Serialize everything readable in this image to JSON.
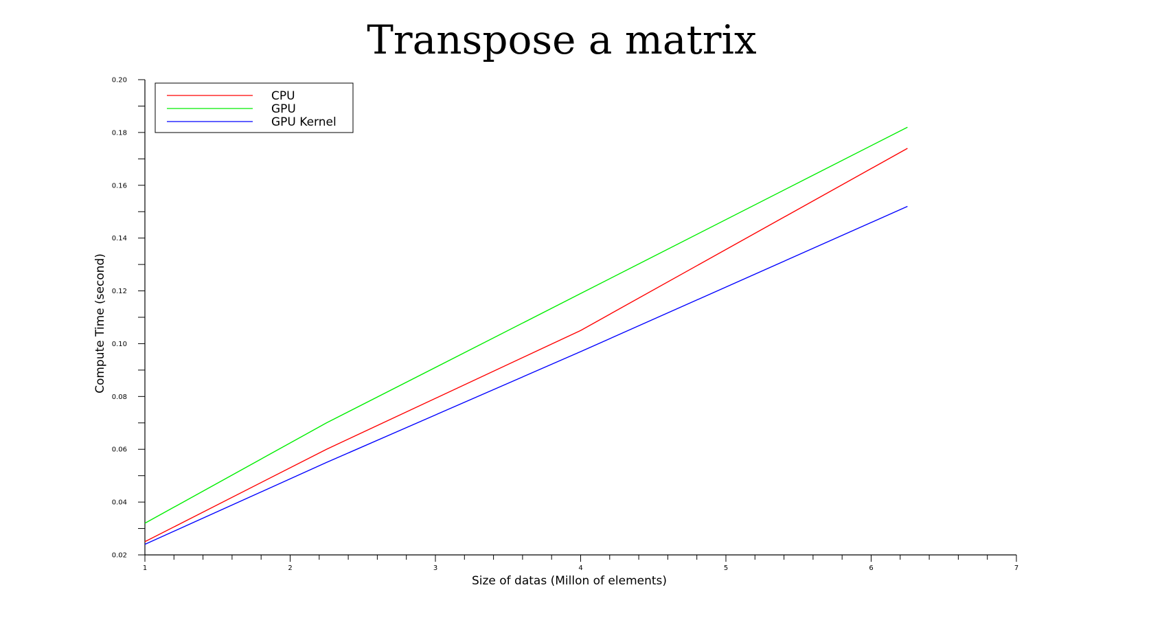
{
  "chart_data": {
    "type": "line",
    "title": "Transpose a matrix",
    "xlabel": "Size of datas (Millon of elements)",
    "ylabel": "Compute Time (second)",
    "xlim": [
      1,
      7
    ],
    "ylim": [
      0.02,
      0.2
    ],
    "x_major_ticks": [
      1,
      2,
      3,
      4,
      5,
      6,
      7
    ],
    "x_tick_labels": [
      "1",
      "2",
      "3",
      "4",
      "5",
      "6",
      "7"
    ],
    "y_major_ticks": [
      0.02,
      0.04,
      0.06,
      0.08,
      0.1,
      0.12,
      0.14,
      0.16,
      0.18,
      0.2
    ],
    "y_tick_labels": [
      "0.02",
      "0.04",
      "0.06",
      "0.08",
      "0.10",
      "0.12",
      "0.14",
      "0.16",
      "0.18",
      "0.20"
    ],
    "grid": false,
    "legend_position": "top-left",
    "series": [
      {
        "name": "CPU",
        "color": "#ff0000",
        "x": [
          1,
          2.25,
          4,
          6.25
        ],
        "y": [
          0.025,
          0.06,
          0.105,
          0.174
        ]
      },
      {
        "name": "GPU",
        "color": "#00ee00",
        "x": [
          1,
          2.25,
          4,
          6.25
        ],
        "y": [
          0.032,
          0.07,
          0.119,
          0.182
        ]
      },
      {
        "name": "GPU Kernel",
        "color": "#0000ff",
        "x": [
          1,
          2.25,
          4,
          6.25
        ],
        "y": [
          0.024,
          0.055,
          0.097,
          0.152
        ]
      }
    ]
  }
}
